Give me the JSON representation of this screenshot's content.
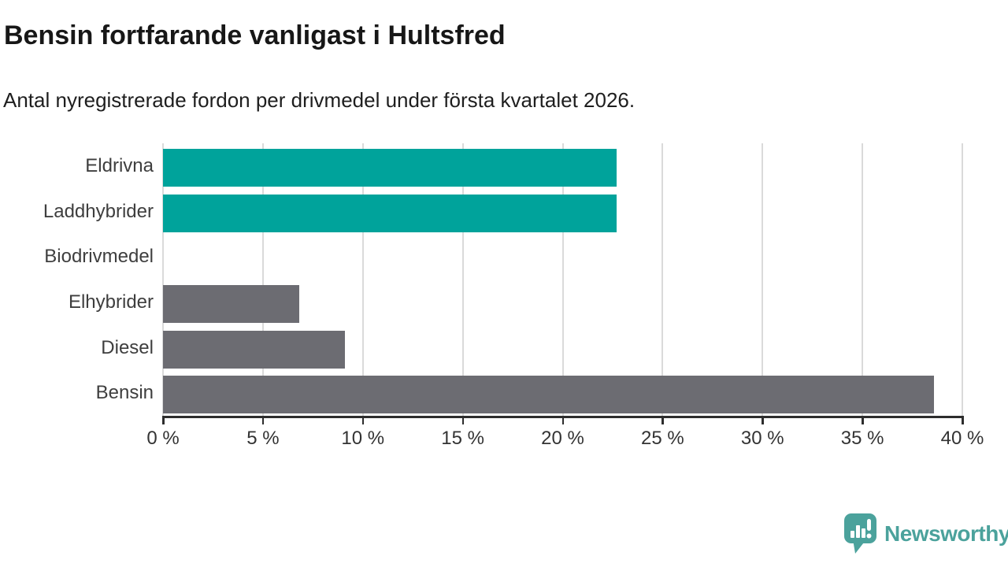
{
  "title": "Bensin fortfarande vanligast i Hultsfred",
  "subtitle": "Antal nyregistrerade fordon per drivmedel under första kvartalet 2026.",
  "branding": {
    "name": "Newsworthy",
    "color": "#4ba29c"
  },
  "colors": {
    "highlight_teal": "#00a39b",
    "bar_gray": "#6c6c72",
    "gridline": "#dadada",
    "axis": "#2d2d2d",
    "title_text": "#171717",
    "label_text": "#3e3e3e"
  },
  "chart_data": {
    "type": "bar",
    "orientation": "horizontal",
    "title": "Bensin fortfarande vanligast i Hultsfred",
    "subtitle": "Antal nyregistrerade fordon per drivmedel under första kvartalet 2026.",
    "categories": [
      "Eldrivna",
      "Laddhybrider",
      "Biodrivmedel",
      "Elhybrider",
      "Diesel",
      "Bensin"
    ],
    "values": [
      22.7,
      22.7,
      0,
      6.8,
      9.1,
      38.6
    ],
    "unit": "%",
    "bar_colors": [
      "#00a39b",
      "#00a39b",
      "#6c6c72",
      "#6c6c72",
      "#6c6c72",
      "#6c6c72"
    ],
    "xlim": [
      0,
      40
    ],
    "x_ticks": [
      0,
      5,
      10,
      15,
      20,
      25,
      30,
      35,
      40
    ],
    "x_tick_labels": [
      "0 %",
      "5 %",
      "10 %",
      "15 %",
      "20 %",
      "25 %",
      "30 %",
      "35 %",
      "40 %"
    ],
    "grid": true,
    "legend": "none",
    "xlabel": "",
    "ylabel": ""
  }
}
